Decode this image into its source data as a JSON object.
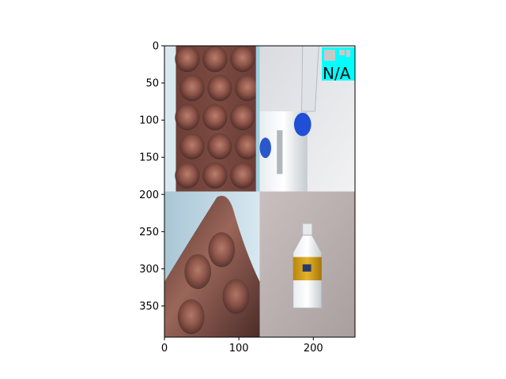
{
  "chart_data": {
    "type": "image",
    "title": "",
    "xlabel": "",
    "ylabel": "",
    "xlim": [
      0,
      256
    ],
    "ylim": [
      392,
      0
    ],
    "x_ticks": [
      0,
      100,
      200
    ],
    "y_ticks": [
      0,
      50,
      100,
      150,
      200,
      250,
      300,
      350
    ],
    "grid": false,
    "panels": [
      {
        "name": "textured-brick-panel",
        "subject": "brick",
        "x_range": [
          0,
          128
        ],
        "y_range": [
          0,
          196
        ]
      },
      {
        "name": "bottle-on-table-panel",
        "subject": "bottle",
        "x_range": [
          128,
          256
        ],
        "y_range": [
          0,
          196
        ]
      },
      {
        "name": "brick-peak-panel",
        "subject": "brick",
        "x_range": [
          0,
          128
        ],
        "y_range": [
          196,
          392
        ]
      },
      {
        "name": "labeled-bottle-panel",
        "subject": "bottle",
        "x_range": [
          128,
          256
        ],
        "y_range": [
          196,
          392
        ]
      }
    ],
    "annotation": {
      "text": "N/A",
      "color": "#00ffff"
    }
  }
}
